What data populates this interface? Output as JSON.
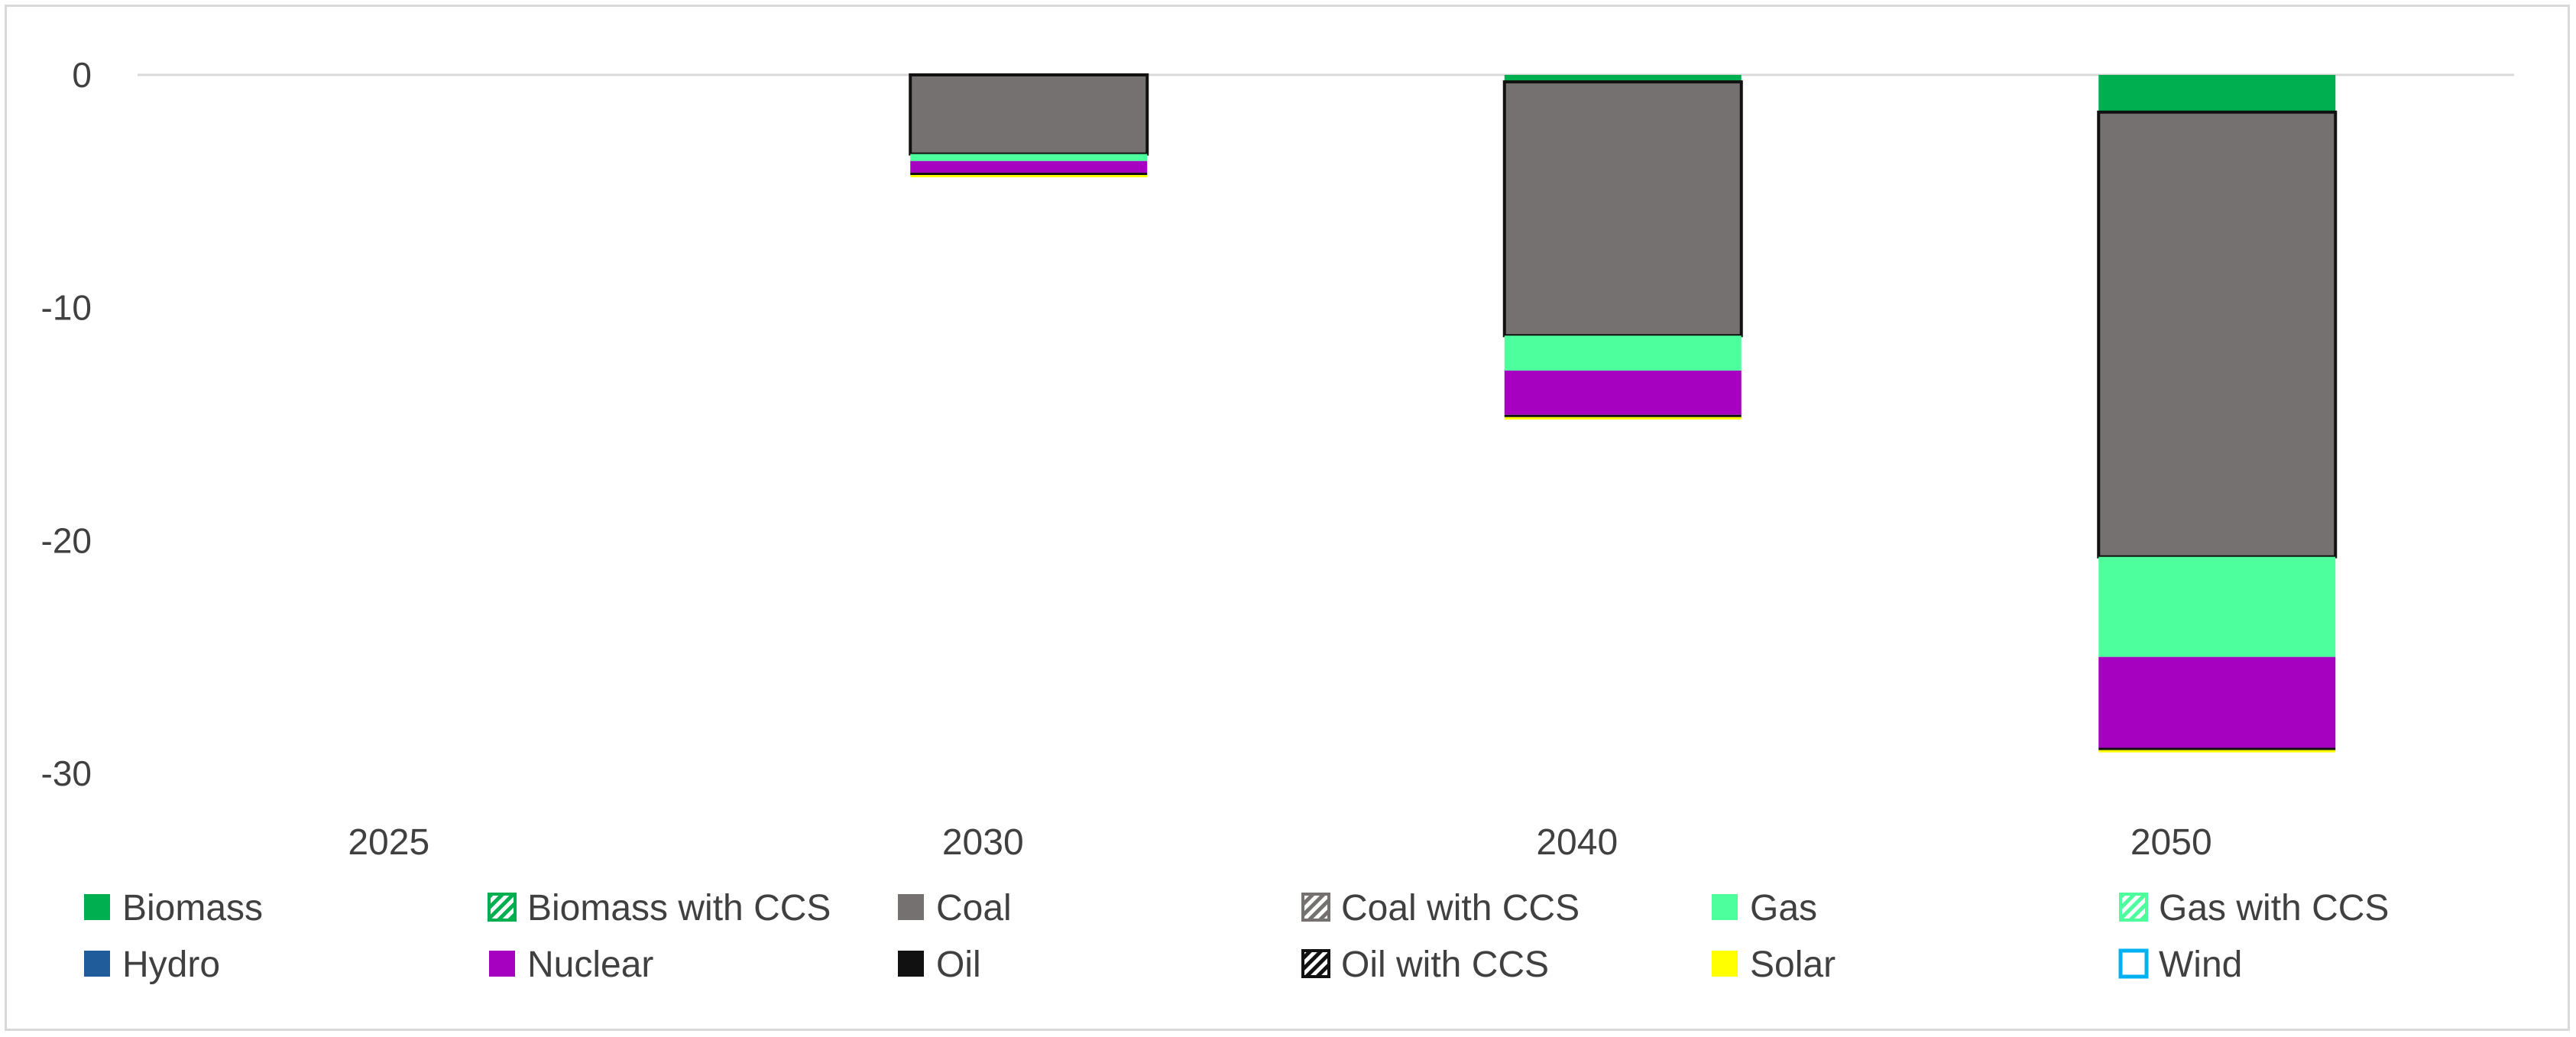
{
  "chart_data": {
    "type": "bar",
    "stacked": true,
    "title": "",
    "xlabel": "",
    "ylabel": "",
    "ylim": [
      -30,
      0
    ],
    "yticks": [
      0,
      -10,
      -20,
      -30
    ],
    "ytick_labels": [
      "0",
      "-10",
      "-20",
      "-30"
    ],
    "grid": false,
    "legend_position": "bottom",
    "categories": [
      "2025",
      "2030",
      "2040",
      "2050"
    ],
    "series": [
      {
        "name": "Biomass",
        "color": "#00b050",
        "pattern": "solid",
        "values": [
          0,
          0,
          -0.3,
          -1.6
        ]
      },
      {
        "name": "Biomass with CCS",
        "color": "#00b050",
        "pattern": "hatched",
        "values": [
          0,
          0,
          0,
          0
        ]
      },
      {
        "name": "Coal",
        "color": "#767171",
        "pattern": "solid",
        "values": [
          0,
          -3.4,
          -10.9,
          -19.1
        ]
      },
      {
        "name": "Coal with CCS",
        "color": "#767171",
        "pattern": "hatched",
        "values": [
          0,
          0,
          0,
          0
        ]
      },
      {
        "name": "Gas",
        "color": "#4dff9d",
        "pattern": "solid",
        "values": [
          0,
          -0.3,
          -1.5,
          -4.3
        ]
      },
      {
        "name": "Gas with  CCS",
        "color": "#4dff9d",
        "pattern": "hatched",
        "values": [
          0,
          0,
          0,
          0
        ]
      },
      {
        "name": "Hydro",
        "color": "#1f5c99",
        "pattern": "solid",
        "values": [
          0,
          0,
          0,
          0
        ]
      },
      {
        "name": "Nuclear",
        "color": "#a600c0",
        "pattern": "solid",
        "values": [
          0,
          -0.5,
          -1.9,
          -3.9
        ]
      },
      {
        "name": "Oil",
        "color": "#111111",
        "pattern": "solid",
        "values": [
          0,
          -0.1,
          -0.1,
          -0.1
        ]
      },
      {
        "name": "Oil with CCS",
        "color": "#111111",
        "pattern": "hatched",
        "values": [
          0,
          0,
          0,
          0
        ]
      },
      {
        "name": "Solar",
        "color": "#ffff00",
        "pattern": "solid",
        "values": [
          0,
          -0.1,
          -0.1,
          -0.1
        ]
      },
      {
        "name": "Wind",
        "color": "#00b0f0",
        "pattern": "outline",
        "values": [
          0,
          0,
          0,
          0
        ]
      }
    ]
  }
}
